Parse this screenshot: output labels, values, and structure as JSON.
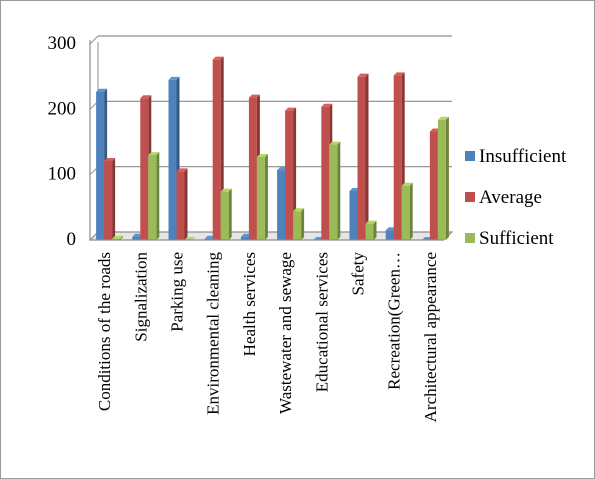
{
  "chart_data": {
    "type": "bar",
    "title": "",
    "xlabel": "",
    "ylabel": "",
    "ylim": [
      0,
      300
    ],
    "yticks": [
      0,
      100,
      200,
      300
    ],
    "grid": true,
    "legend_position": "right",
    "categories": [
      "Conditions of the roads",
      "Signalization",
      "Parking use",
      "Environmental cleaning",
      "Health services",
      "Wastewater and sewage",
      "Educational services",
      "Safety",
      "Recreation(Green…",
      "Architectural appearance"
    ],
    "series": [
      {
        "name": "Insufficient",
        "color": "#4f81bd",
        "values": [
          227,
          5,
          245,
          2,
          5,
          107,
          0,
          75,
          15,
          0
        ]
      },
      {
        "name": "Average",
        "color": "#c0504d",
        "values": [
          121,
          217,
          105,
          276,
          218,
          198,
          204,
          250,
          252,
          166
        ]
      },
      {
        "name": "Sufficient",
        "color": "#9bbb59",
        "values": [
          2,
          130,
          0,
          74,
          127,
          44,
          146,
          25,
          83,
          184
        ]
      }
    ]
  }
}
